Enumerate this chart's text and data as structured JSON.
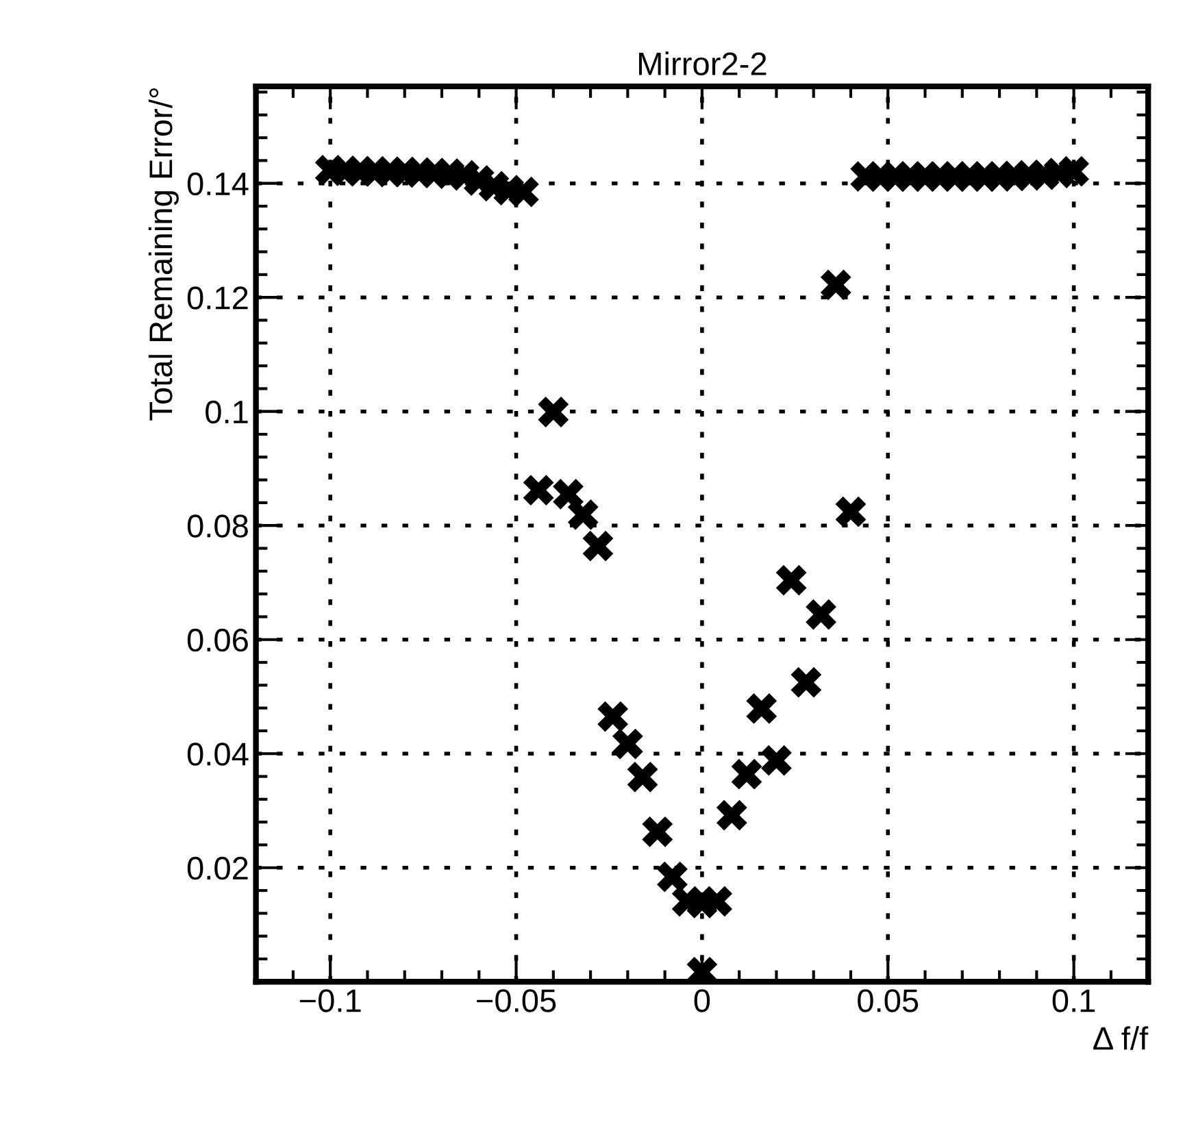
{
  "chart_data": {
    "type": "scatter",
    "title": "Mirror2-2",
    "xlabel": "Δ f/f",
    "ylabel": "Total Remaining Error/°",
    "x": [
      -0.1,
      -0.096,
      -0.092,
      -0.088,
      -0.084,
      -0.08,
      -0.076,
      -0.072,
      -0.068,
      -0.064,
      -0.06,
      -0.056,
      -0.052,
      -0.048,
      -0.044,
      -0.04,
      -0.036,
      -0.032,
      -0.028,
      -0.024,
      -0.02,
      -0.016,
      -0.012,
      -0.008,
      -0.004,
      0,
      0,
      0.004,
      0.008,
      0.012,
      0.016,
      0.02,
      0.024,
      0.028,
      0.032,
      0.036,
      0.04,
      0.044,
      0.048,
      0.052,
      0.056,
      0.06,
      0.064,
      0.068,
      0.072,
      0.076,
      0.08,
      0.084,
      0.088,
      0.092,
      0.096,
      0.1
    ],
    "series": [
      {
        "color": "#000000",
        "values": [
          0.1423,
          0.1422,
          0.1421,
          0.1421,
          0.142,
          0.142,
          0.1419,
          0.1418,
          0.1417,
          0.1414,
          0.1405,
          0.1395,
          0.1388,
          0.1385,
          0.0862,
          0.0999,
          0.0855,
          0.0819,
          0.0764,
          0.0465,
          0.0417,
          0.0359,
          0.0263,
          0.0184,
          0.0141,
          0.0138,
          0.0017,
          0.0141,
          0.0292,
          0.0364,
          0.0479,
          0.0388,
          0.0704,
          0.0525,
          0.0644,
          0.1222,
          0.0824,
          0.1412,
          0.1412,
          0.1412,
          0.1412,
          0.1412,
          0.1412,
          0.1412,
          0.1412,
          0.1412,
          0.1412,
          0.1413,
          0.1414,
          0.1415,
          0.1418,
          0.1421
        ]
      }
    ],
    "xlim": [
      -0.12,
      0.12
    ],
    "ylim": [
      0,
      0.157
    ],
    "xticks": [
      -0.1,
      -0.05,
      0,
      0.05,
      0.1
    ],
    "yticks": [
      0.02,
      0.04,
      0.06,
      0.08,
      0.1,
      0.12,
      0.14
    ],
    "grid": true,
    "marker": "cross"
  }
}
